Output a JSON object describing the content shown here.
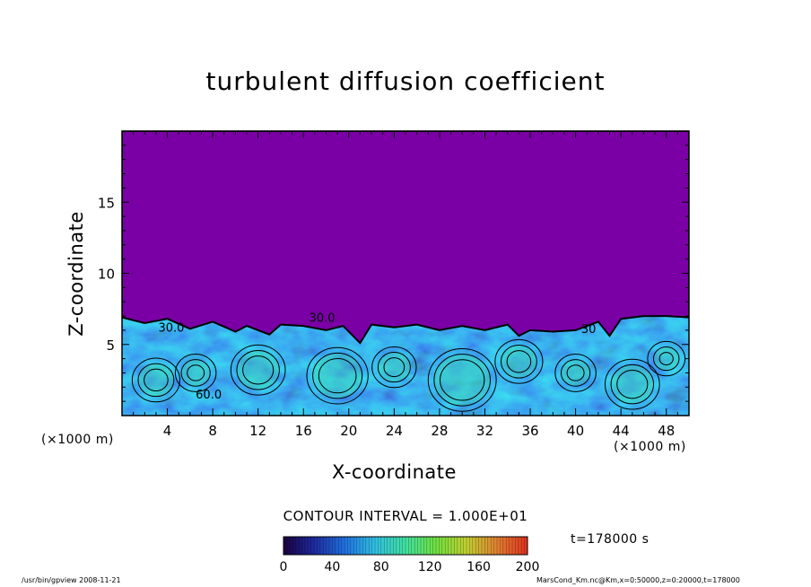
{
  "title": "turbulent diffusion coefficient",
  "xlabel": "X-coordinate",
  "ylabel": "Z-coordinate",
  "x_unit_left": "(×1000 m)",
  "x_unit_right": "(×1000 m)",
  "contour_interval": "CONTOUR INTERVAL = 1.000E+01",
  "time_label": "t=178000 s",
  "footer_left": "/usr/bin/gpview   2008-11-21",
  "footer_right": "MarsCond_Km.nc@Km,x=0:50000,z=0:20000,t=178000",
  "colors": {
    "background": "#7a00a6",
    "colorbar": [
      "#1a0040",
      "#1e2a9e",
      "#2070e0",
      "#30c0e0",
      "#40e0a0",
      "#70e040",
      "#c0d030",
      "#e08030",
      "#e03020"
    ]
  },
  "chart_data": {
    "type": "heatmap",
    "title": "turbulent diffusion coefficient",
    "xlabel": "X-coordinate",
    "ylabel": "Z-coordinate",
    "xlim": [
      0,
      50
    ],
    "ylim": [
      0,
      20
    ],
    "xticks": [
      4,
      8,
      12,
      16,
      20,
      24,
      28,
      32,
      36,
      40,
      44,
      48
    ],
    "yticks": [
      5,
      10,
      15
    ],
    "colorbar": {
      "min": 0,
      "max": 200,
      "ticks": [
        0,
        40,
        80,
        120,
        160,
        200
      ]
    },
    "contour_labels": [
      {
        "text": "30.0",
        "x": 16.5,
        "z": 6.6
      },
      {
        "text": "30.0",
        "x": 3.2,
        "z": 5.9
      },
      {
        "text": "60.0",
        "x": 6.5,
        "z": 1.2
      },
      {
        "text": "30",
        "x": 40.5,
        "z": 5.8
      }
    ],
    "boundary_layer_top": [
      [
        0,
        6.9
      ],
      [
        2,
        6.5
      ],
      [
        4,
        6.8
      ],
      [
        6,
        6.1
      ],
      [
        8,
        6.6
      ],
      [
        10,
        5.9
      ],
      [
        11,
        6.3
      ],
      [
        13,
        5.7
      ],
      [
        14,
        6.4
      ],
      [
        16,
        6.3
      ],
      [
        18,
        6.0
      ],
      [
        19.5,
        6.3
      ],
      [
        21,
        5.1
      ],
      [
        22,
        6.4
      ],
      [
        24,
        6.2
      ],
      [
        26,
        6.4
      ],
      [
        28,
        6.0
      ],
      [
        30,
        6.3
      ],
      [
        32,
        6.0
      ],
      [
        34,
        6.4
      ],
      [
        35,
        5.6
      ],
      [
        36,
        6.0
      ],
      [
        38,
        5.9
      ],
      [
        40,
        6.0
      ],
      [
        42,
        6.6
      ],
      [
        43,
        5.6
      ],
      [
        44,
        6.8
      ],
      [
        46,
        7.0
      ],
      [
        48,
        7.0
      ],
      [
        50,
        6.9
      ]
    ]
  }
}
